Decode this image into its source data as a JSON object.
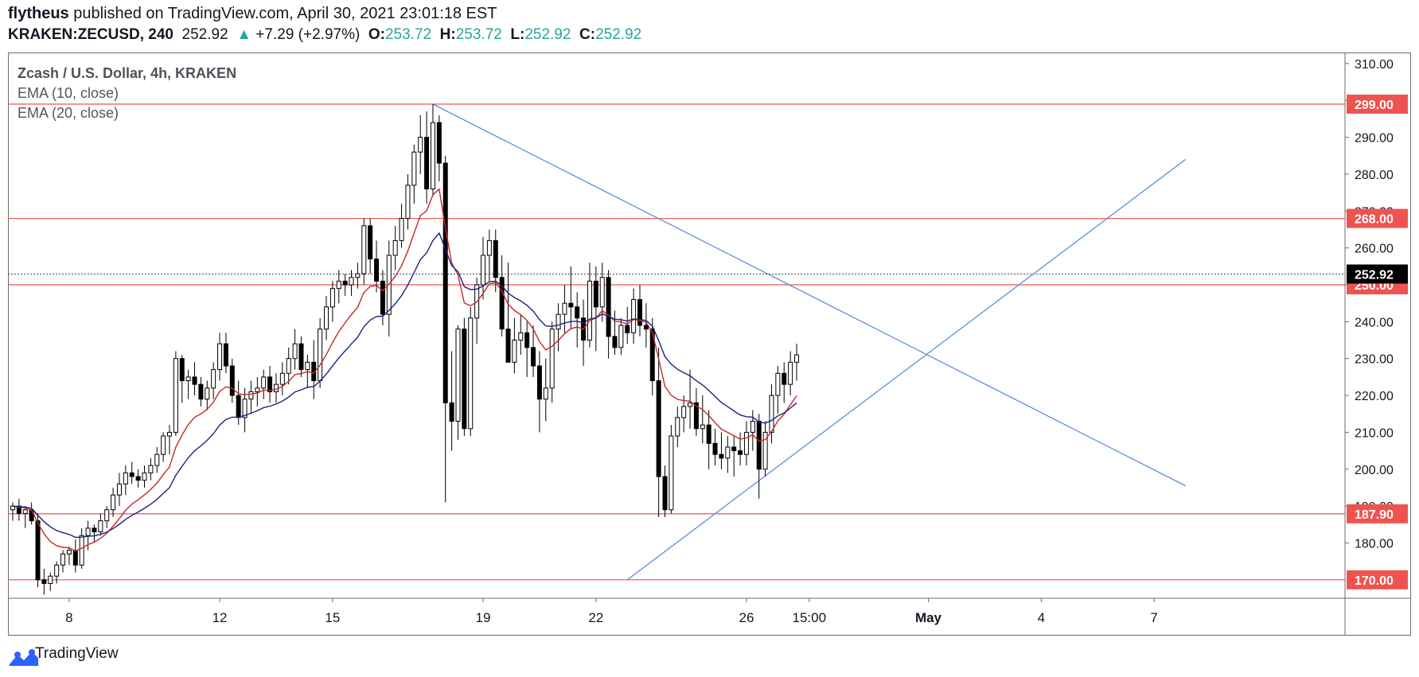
{
  "header": {
    "author": "flytheus",
    "published_text": "published on TradingView.com, April 30, 2021 23:01:18 EST",
    "symbol": "KRAKEN:ZECUSD, 240",
    "last": "252.92",
    "arrow": "▲",
    "change": "+7.29 (+2.97%)",
    "o_label": "O:",
    "o_value": "253.72",
    "h_label": "H:",
    "h_value": "253.72",
    "l_label": "L:",
    "l_value": "252.92",
    "c_label": "C:",
    "c_value": "252.92"
  },
  "legend": {
    "title": "Zcash / U.S. Dollar, 4h, KRAKEN",
    "ema10": "EMA (10, close)",
    "ema20": "EMA (20, close)"
  },
  "footer": {
    "brand": "TradingView"
  },
  "colors": {
    "hline": "#ef5350",
    "trend": "#5b8fd9",
    "ema10": "#c62828",
    "ema20": "#1a237e",
    "bull": "#ffffff",
    "bear": "#000000",
    "teal": "#26a69a"
  },
  "chart_data": {
    "type": "candlestick",
    "ylim": [
      165,
      313
    ],
    "y_ticks": [
      180,
      190,
      200,
      210,
      220,
      230,
      240,
      250,
      260,
      270,
      280,
      290,
      300,
      310
    ],
    "y_tick_labels": [
      "180.00",
      "190.00",
      "200.00",
      "210.00",
      "220.00",
      "230.00",
      "240.00",
      "250.00",
      "260.00",
      "270.00",
      "280.00",
      "290.00",
      "300.00",
      "310.00"
    ],
    "x_ticks": [
      {
        "label": "8",
        "bar": 9
      },
      {
        "label": "12",
        "bar": 33
      },
      {
        "label": "15",
        "bar": 51
      },
      {
        "label": "19",
        "bar": 75
      },
      {
        "label": "22",
        "bar": 93
      },
      {
        "label": "26",
        "bar": 117
      },
      {
        "label": "15:00",
        "bar": 127
      },
      {
        "label": "May",
        "bar": 146
      },
      {
        "label": "4",
        "bar": 164
      },
      {
        "label": "7",
        "bar": 182
      }
    ],
    "horizontal_levels": [
      {
        "value": 299.0,
        "label": "299.00"
      },
      {
        "value": 268.0,
        "label": "268.00"
      },
      {
        "value": 250.0,
        "label": "250.00"
      },
      {
        "value": 187.9,
        "label": "187.90"
      },
      {
        "value": 170.0,
        "label": "170.00"
      }
    ],
    "last_price": {
      "value": 252.92,
      "label": "252.92"
    },
    "trend_lines": [
      {
        "from": {
          "bar": 67,
          "value": 299.0
        },
        "to": {
          "bar": 187,
          "value": 195.5
        }
      },
      {
        "from": {
          "bar": 98,
          "value": 170.0
        },
        "to": {
          "bar": 187,
          "value": 284.0
        }
      }
    ],
    "ohlc": [
      [
        189,
        191,
        186,
        190
      ],
      [
        190,
        192,
        186,
        188
      ],
      [
        188,
        190,
        184,
        189
      ],
      [
        189,
        191,
        185,
        186
      ],
      [
        186,
        188,
        168,
        170
      ],
      [
        170,
        173,
        166,
        169
      ],
      [
        169,
        172,
        167,
        171
      ],
      [
        171,
        175,
        169,
        174
      ],
      [
        174,
        178,
        172,
        177
      ],
      [
        177,
        179,
        174,
        178
      ],
      [
        178,
        181,
        172,
        174
      ],
      [
        174,
        184,
        173,
        182
      ],
      [
        182,
        186,
        178,
        184
      ],
      [
        184,
        185,
        180,
        183
      ],
      [
        183,
        188,
        182,
        186
      ],
      [
        186,
        190,
        184,
        189
      ],
      [
        189,
        195,
        187,
        193
      ],
      [
        193,
        199,
        190,
        196
      ],
      [
        196,
        201,
        193,
        199
      ],
      [
        199,
        202,
        196,
        198
      ],
      [
        198,
        200,
        195,
        197
      ],
      [
        197,
        201,
        195,
        199
      ],
      [
        199,
        203,
        197,
        201
      ],
      [
        201,
        206,
        199,
        204
      ],
      [
        204,
        210,
        202,
        209
      ],
      [
        209,
        212,
        204,
        210
      ],
      [
        210,
        232,
        209,
        230
      ],
      [
        230,
        231,
        218,
        224
      ],
      [
        224,
        227,
        219,
        225
      ],
      [
        225,
        229,
        220,
        223
      ],
      [
        223,
        225,
        217,
        219
      ],
      [
        219,
        224,
        216,
        222
      ],
      [
        222,
        229,
        219,
        227
      ],
      [
        227,
        237,
        224,
        234
      ],
      [
        234,
        237,
        226,
        228
      ],
      [
        228,
        230,
        218,
        220
      ],
      [
        220,
        224,
        212,
        214
      ],
      [
        214,
        222,
        210,
        219
      ],
      [
        219,
        224,
        215,
        221
      ],
      [
        221,
        225,
        217,
        222
      ],
      [
        222,
        227,
        219,
        225
      ],
      [
        225,
        228,
        218,
        221
      ],
      [
        221,
        226,
        218,
        223
      ],
      [
        223,
        229,
        220,
        226
      ],
      [
        226,
        233,
        223,
        230
      ],
      [
        230,
        238,
        227,
        234
      ],
      [
        234,
        236,
        225,
        227
      ],
      [
        227,
        231,
        222,
        229
      ],
      [
        229,
        235,
        219,
        224
      ],
      [
        224,
        241,
        222,
        238
      ],
      [
        238,
        247,
        235,
        244
      ],
      [
        244,
        251,
        240,
        249
      ],
      [
        249,
        254,
        245,
        251
      ],
      [
        251,
        253,
        247,
        250
      ],
      [
        250,
        254,
        247,
        252
      ],
      [
        252,
        256,
        249,
        253
      ],
      [
        253,
        268,
        250,
        266
      ],
      [
        266,
        268,
        253,
        257
      ],
      [
        257,
        262,
        248,
        251
      ],
      [
        251,
        254,
        239,
        242
      ],
      [
        242,
        262,
        236,
        258
      ],
      [
        258,
        266,
        254,
        262
      ],
      [
        262,
        272,
        260,
        268
      ],
      [
        268,
        280,
        265,
        277
      ],
      [
        277,
        288,
        272,
        286
      ],
      [
        286,
        296,
        280,
        290
      ],
      [
        290,
        297,
        272,
        276
      ],
      [
        276,
        299,
        274,
        294
      ],
      [
        294,
        296,
        278,
        283
      ],
      [
        283,
        285,
        191,
        218
      ],
      [
        218,
        232,
        205,
        213
      ],
      [
        213,
        239,
        208,
        238
      ],
      [
        238,
        241,
        209,
        211
      ],
      [
        211,
        244,
        209,
        241
      ],
      [
        241,
        252,
        234,
        250
      ],
      [
        250,
        263,
        246,
        258
      ],
      [
        258,
        265,
        251,
        262
      ],
      [
        262,
        265,
        248,
        252
      ],
      [
        252,
        258,
        236,
        238
      ],
      [
        238,
        256,
        230,
        229
      ],
      [
        229,
        241,
        226,
        235
      ],
      [
        235,
        242,
        231,
        237
      ],
      [
        237,
        240,
        225,
        233
      ],
      [
        233,
        239,
        225,
        228
      ],
      [
        228,
        232,
        210,
        219
      ],
      [
        219,
        230,
        213,
        222
      ],
      [
        222,
        240,
        218,
        238
      ],
      [
        238,
        245,
        232,
        242
      ],
      [
        242,
        250,
        237,
        245
      ],
      [
        245,
        255,
        238,
        244
      ],
      [
        244,
        248,
        233,
        241
      ],
      [
        241,
        246,
        228,
        235
      ],
      [
        235,
        256,
        233,
        251
      ],
      [
        251,
        255,
        232,
        244
      ],
      [
        244,
        256,
        240,
        252
      ],
      [
        252,
        254,
        230,
        236
      ],
      [
        236,
        243,
        231,
        233
      ],
      [
        233,
        241,
        231,
        239
      ],
      [
        239,
        244,
        234,
        237
      ],
      [
        237,
        249,
        234,
        246
      ],
      [
        246,
        250,
        236,
        239
      ],
      [
        239,
        245,
        233,
        238
      ],
      [
        238,
        241,
        220,
        224
      ],
      [
        224,
        233,
        187,
        198
      ],
      [
        198,
        201,
        187,
        189
      ],
      [
        189,
        212,
        188,
        209
      ],
      [
        209,
        217,
        206,
        214
      ],
      [
        214,
        220,
        210,
        217
      ],
      [
        217,
        227,
        211,
        218
      ],
      [
        218,
        222,
        209,
        211
      ],
      [
        211,
        220,
        207,
        212
      ],
      [
        212,
        216,
        200,
        207
      ],
      [
        207,
        211,
        201,
        204
      ],
      [
        204,
        210,
        200,
        203
      ],
      [
        203,
        209,
        199,
        206
      ],
      [
        206,
        209,
        198,
        205
      ],
      [
        205,
        210,
        201,
        204
      ],
      [
        204,
        213,
        201,
        210
      ],
      [
        210,
        216,
        205,
        213
      ],
      [
        213,
        215,
        192,
        200
      ],
      [
        200,
        213,
        198,
        210
      ],
      [
        210,
        223,
        207,
        220
      ],
      [
        220,
        228,
        215,
        226
      ],
      [
        226,
        229,
        218,
        223
      ],
      [
        223,
        232,
        220,
        229
      ],
      [
        229,
        234,
        224,
        231
      ]
    ]
  }
}
